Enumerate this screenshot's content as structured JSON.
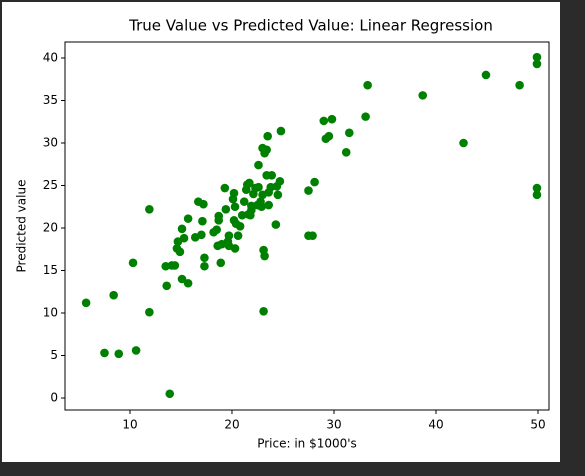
{
  "chart_data": {
    "type": "scatter",
    "title": "True Value vs Predicted Value: Linear Regression",
    "x_label": "Price: in $1000's",
    "y_label": "Predicted value",
    "series": [
      {
        "color": "#008000",
        "x": [
          5.7,
          8.4,
          7.5,
          8.9,
          10.6,
          10.3,
          11.9,
          11.9,
          13.9,
          13.5,
          13.6,
          14.1,
          14.4,
          14.6,
          14.7,
          14.9,
          15.1,
          15.1,
          15.3,
          15.7,
          15.7,
          16.4,
          16.7,
          17.0,
          17.1,
          17.2,
          17.3,
          17.3,
          18.2,
          18.5,
          18.6,
          18.7,
          18.7,
          18.9,
          19.0,
          19.3,
          19.4,
          19.6,
          19.7,
          19.7,
          20.1,
          20.2,
          20.2,
          20.3,
          20.4,
          20.3,
          20.6,
          20.8,
          21.0,
          21.2,
          21.4,
          21.5,
          21.6,
          21.7,
          21.8,
          21.9,
          21.9,
          22.1,
          22.3,
          22.6,
          22.5,
          22.6,
          22.8,
          22.9,
          23.0,
          23.0,
          23.1,
          23.2,
          23.1,
          23.2,
          23.4,
          23.4,
          23.5,
          23.6,
          23.6,
          23.9,
          23.8,
          24.3,
          24.4,
          24.5,
          24.7,
          24.8,
          27.5,
          27.5,
          27.9,
          28.1,
          29.0,
          29.8,
          29.2,
          29.5,
          31.2,
          31.5,
          33.1,
          33.3,
          38.7,
          42.7,
          44.9,
          48.2,
          49.9,
          49.9,
          49.9,
          49.9
        ],
        "values": [
          11.2,
          12.1,
          5.3,
          5.2,
          5.6,
          15.9,
          10.1,
          22.2,
          0.5,
          15.5,
          13.2,
          15.6,
          15.6,
          17.6,
          18.4,
          17.2,
          19.9,
          14.0,
          18.8,
          13.5,
          21.1,
          18.9,
          23.1,
          19.2,
          20.8,
          22.8,
          16.5,
          15.5,
          19.5,
          19.8,
          17.9,
          20.9,
          21.4,
          15.9,
          18.1,
          24.7,
          22.2,
          18.4,
          19.1,
          17.9,
          23.4,
          24.1,
          20.9,
          17.6,
          20.5,
          22.5,
          19.1,
          20.2,
          21.5,
          23.1,
          24.5,
          25.1,
          21.6,
          25.3,
          21.5,
          22.1,
          22.6,
          24.0,
          24.7,
          24.8,
          22.7,
          27.4,
          23.1,
          22.5,
          29.4,
          23.9,
          17.4,
          16.7,
          10.2,
          28.8,
          29.2,
          26.2,
          30.8,
          22.7,
          24.2,
          26.2,
          24.8,
          20.4,
          24.9,
          23.9,
          25.5,
          31.4,
          24.4,
          19.1,
          19.1,
          25.4,
          32.6,
          32.8,
          30.5,
          30.8,
          28.9,
          31.2,
          33.1,
          36.8,
          35.6,
          30.0,
          38.0,
          36.8,
          40.1,
          39.3,
          24.7,
          23.9
        ]
      }
    ],
    "xlim": [
      3.63,
      51.08
    ],
    "ylim": [
      -1.41,
      41.88
    ],
    "xticks": [
      10,
      20,
      30,
      40,
      50
    ],
    "yticks": [
      0,
      5,
      10,
      15,
      20,
      25,
      30,
      35,
      40
    ]
  }
}
